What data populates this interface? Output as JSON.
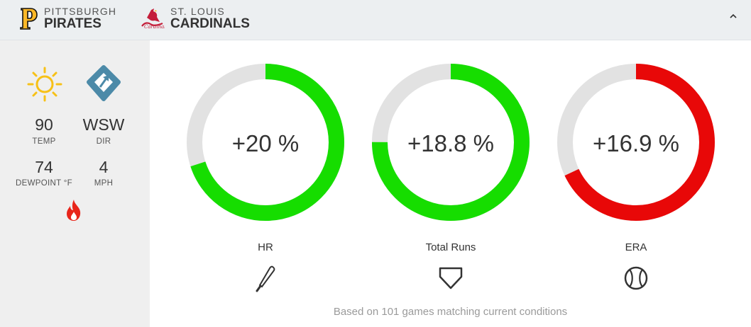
{
  "header": {
    "away": {
      "city": "PITTSBURGH",
      "name": "PIRATES",
      "logo": "pirates-p-logo"
    },
    "home": {
      "city": "ST. LOUIS",
      "name": "CARDINALS",
      "logo": "cardinals-bird-logo"
    },
    "collapse_icon": "chevron-up-icon"
  },
  "weather": {
    "condition_icon": "sun-icon",
    "wind_icon": "wind-direction-icon",
    "temp": {
      "value": "90",
      "label": "TEMP"
    },
    "dir": {
      "value": "WSW",
      "label": "DIR"
    },
    "dewpoint": {
      "value": "74",
      "label": "DEWPOINT °F"
    },
    "wind": {
      "value": "4",
      "label": "MPH"
    },
    "hot_icon": "fire-icon"
  },
  "metrics": [
    {
      "text": "+20 %",
      "label": "HR",
      "fraction": 0.7,
      "color": "#16dd00",
      "icon": "bat-icon"
    },
    {
      "text": "+18.8 %",
      "label": "Total Runs",
      "fraction": 0.75,
      "color": "#16dd00",
      "icon": "home-plate-icon"
    },
    {
      "text": "+16.9 %",
      "label": "ERA",
      "fraction": 0.68,
      "color": "#e80808",
      "icon": "baseball-icon"
    }
  ],
  "colors": {
    "track": "#e2e2e2",
    "positive": "#16dd00",
    "negative": "#e80808"
  },
  "footnote": "Based on 101 games matching current conditions"
}
